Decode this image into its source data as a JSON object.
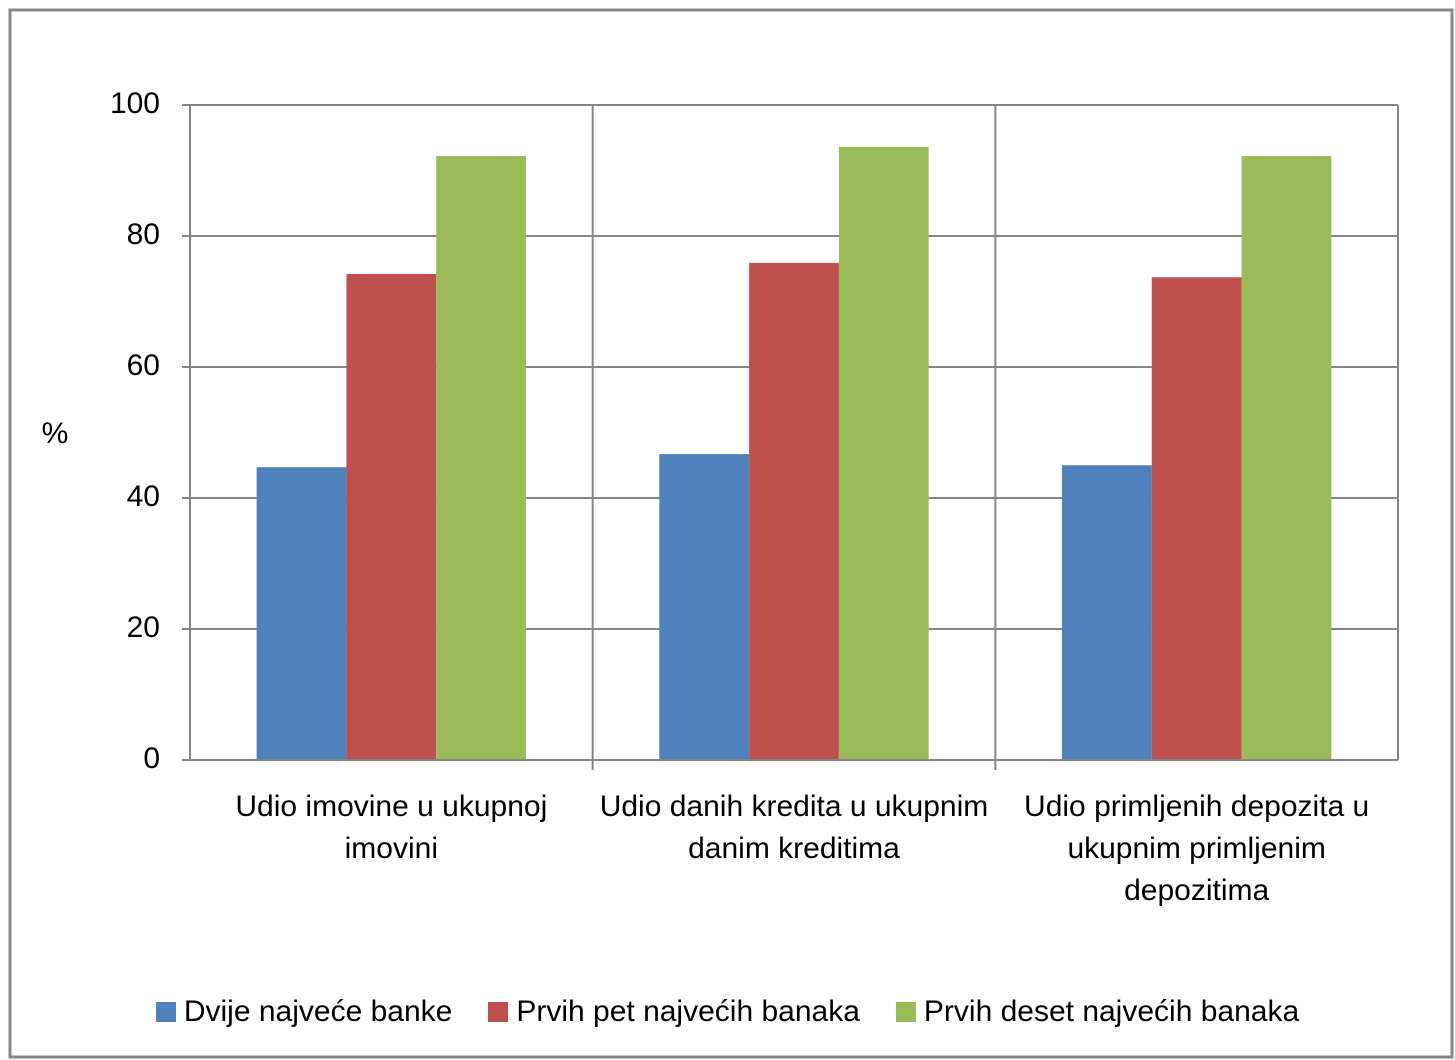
{
  "chart_data": {
    "type": "bar",
    "ylabel": "%",
    "categories": [
      "Udio imovine u ukupnoj imovini",
      "Udio danih kredita u ukupnim danim kreditima",
      "Udio primljenih depozita u ukupnim primljenim depozitima"
    ],
    "series": [
      {
        "name": "Dvije najveće banke",
        "color": "#4f81bd",
        "values": [
          44.7,
          46.7,
          45.0
        ]
      },
      {
        "name": "Prvih pet najvećih banaka",
        "color": "#c0504d",
        "values": [
          74.2,
          75.9,
          73.7
        ]
      },
      {
        "name": "Prvih deset najvećih banaka",
        "color": "#9bbb59",
        "values": [
          92.2,
          93.6,
          92.2
        ]
      }
    ],
    "ylim": [
      0,
      100
    ],
    "yticks": [
      0,
      20,
      40,
      60,
      80,
      100
    ],
    "grid": true,
    "legend": "bottom"
  }
}
